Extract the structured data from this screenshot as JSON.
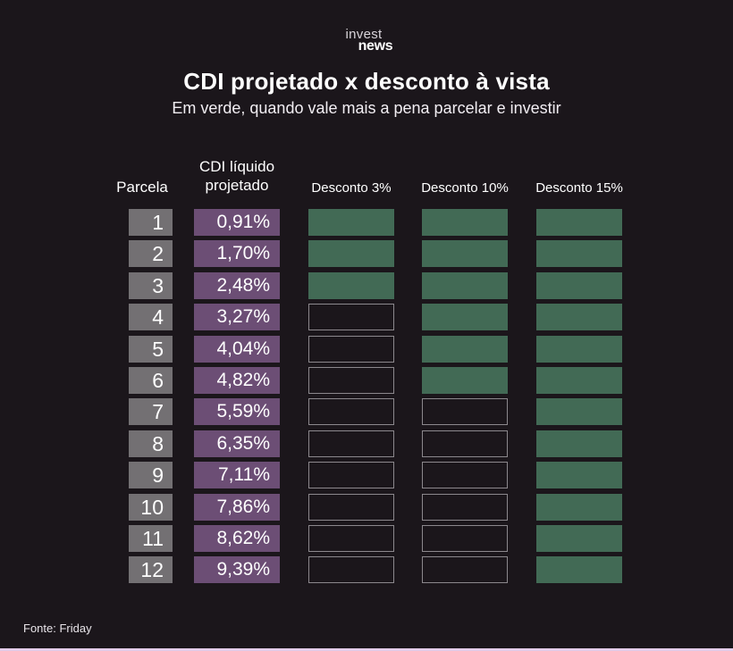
{
  "brand": {
    "line1": "invest",
    "line2": "news"
  },
  "title": "CDI projetado x desconto à vista",
  "subtitle": "Em verde, quando vale mais a pena parcelar e investir",
  "headers": {
    "parcela": "Parcela",
    "cdi_line1": "CDI líquido",
    "cdi_line2": "projetado",
    "d3": "Desconto 3%",
    "d10": "Desconto 10%",
    "d15": "Desconto 15%"
  },
  "source": "Fonte: Friday",
  "colors": {
    "background": "#1b161b",
    "green": "#426a55",
    "purple": "#6c4e75",
    "gray": "#737073"
  },
  "chart_data": {
    "type": "table",
    "title": "CDI projetado x desconto à vista",
    "subtitle": "Em verde, quando vale mais a pena parcelar e investir",
    "columns": [
      "Parcela",
      "CDI líquido projetado",
      "Desconto 3%",
      "Desconto 10%",
      "Desconto 15%"
    ],
    "rows": [
      {
        "parcela": "1",
        "cdi": "0,91%",
        "d3": true,
        "d10": true,
        "d15": true
      },
      {
        "parcela": "2",
        "cdi": "1,70%",
        "d3": true,
        "d10": true,
        "d15": true
      },
      {
        "parcela": "3",
        "cdi": "2,48%",
        "d3": true,
        "d10": true,
        "d15": true
      },
      {
        "parcela": "4",
        "cdi": "3,27%",
        "d3": false,
        "d10": true,
        "d15": true
      },
      {
        "parcela": "5",
        "cdi": "4,04%",
        "d3": false,
        "d10": true,
        "d15": true
      },
      {
        "parcela": "6",
        "cdi": "4,82%",
        "d3": false,
        "d10": true,
        "d15": true
      },
      {
        "parcela": "7",
        "cdi": "5,59%",
        "d3": false,
        "d10": false,
        "d15": true
      },
      {
        "parcela": "8",
        "cdi": "6,35%",
        "d3": false,
        "d10": false,
        "d15": true
      },
      {
        "parcela": "9",
        "cdi": "7,11%",
        "d3": false,
        "d10": false,
        "d15": true
      },
      {
        "parcela": "10",
        "cdi": "7,86%",
        "d3": false,
        "d10": false,
        "d15": true
      },
      {
        "parcela": "11",
        "cdi": "8,62%",
        "d3": false,
        "d10": false,
        "d15": true
      },
      {
        "parcela": "12",
        "cdi": "9,39%",
        "d3": false,
        "d10": false,
        "d15": true
      }
    ]
  }
}
